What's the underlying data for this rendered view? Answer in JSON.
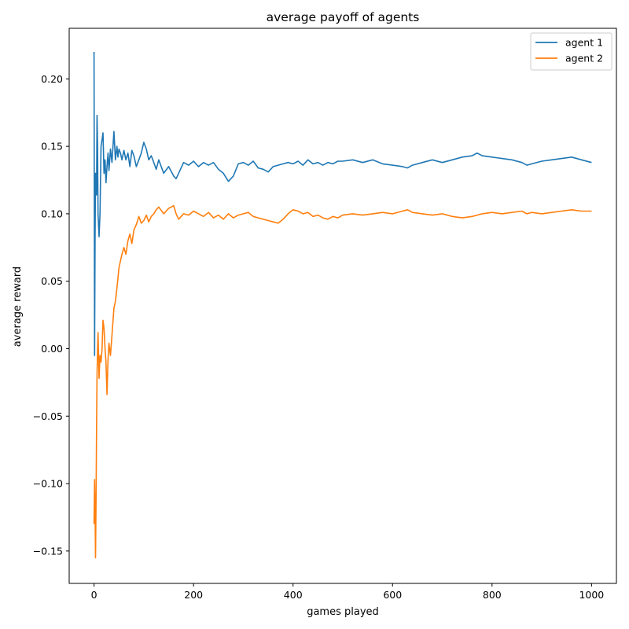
{
  "chart_data": {
    "type": "line",
    "title": "average payoff of agents",
    "xlabel": "games played",
    "ylabel": "average reward",
    "xlim": [
      -50,
      1050
    ],
    "ylim": [
      -0.174,
      0.2375
    ],
    "xticks": [
      0,
      200,
      400,
      600,
      800,
      1000
    ],
    "xtick_labels": [
      "0",
      "200",
      "400",
      "600",
      "800",
      "1000"
    ],
    "yticks": [
      -0.15,
      -0.1,
      -0.05,
      0.0,
      0.05,
      0.1,
      0.15,
      0.2
    ],
    "ytick_labels": [
      "−0.15",
      "−0.10",
      "−0.05",
      "0.00",
      "0.05",
      "0.10",
      "0.15",
      "0.20"
    ],
    "grid": false,
    "legend_position": "top-right",
    "series": [
      {
        "name": "agent 1",
        "color": "#1f77b4",
        "x": [
          0,
          1,
          2,
          3,
          4,
          5,
          6,
          7,
          8,
          10,
          12,
          14,
          16,
          18,
          20,
          22,
          24,
          26,
          28,
          30,
          33,
          36,
          40,
          43,
          46,
          48,
          50,
          53,
          56,
          60,
          64,
          68,
          72,
          76,
          80,
          85,
          90,
          95,
          100,
          105,
          110,
          115,
          120,
          125,
          130,
          140,
          150,
          160,
          165,
          170,
          180,
          190,
          200,
          210,
          220,
          230,
          240,
          250,
          260,
          265,
          270,
          280,
          290,
          300,
          310,
          320,
          330,
          340,
          350,
          360,
          370,
          380,
          390,
          400,
          410,
          420,
          430,
          440,
          450,
          460,
          470,
          480,
          490,
          500,
          520,
          540,
          560,
          580,
          600,
          620,
          630,
          640,
          660,
          680,
          700,
          720,
          740,
          760,
          770,
          780,
          800,
          820,
          840,
          860,
          870,
          880,
          900,
          920,
          940,
          960,
          980,
          1000
        ],
        "values": [
          0.22,
          -0.005,
          0.08,
          0.13,
          0.13,
          0.114,
          0.173,
          0.15,
          0.1,
          0.083,
          0.1,
          0.15,
          0.155,
          0.16,
          0.13,
          0.14,
          0.123,
          0.135,
          0.145,
          0.132,
          0.148,
          0.138,
          0.161,
          0.14,
          0.15,
          0.142,
          0.148,
          0.145,
          0.14,
          0.147,
          0.14,
          0.145,
          0.135,
          0.147,
          0.143,
          0.135,
          0.14,
          0.145,
          0.153,
          0.148,
          0.14,
          0.143,
          0.138,
          0.133,
          0.14,
          0.13,
          0.135,
          0.128,
          0.126,
          0.13,
          0.138,
          0.136,
          0.139,
          0.135,
          0.138,
          0.136,
          0.138,
          0.133,
          0.13,
          0.127,
          0.124,
          0.128,
          0.137,
          0.138,
          0.136,
          0.139,
          0.134,
          0.133,
          0.131,
          0.135,
          0.136,
          0.137,
          0.138,
          0.137,
          0.139,
          0.136,
          0.14,
          0.137,
          0.138,
          0.136,
          0.138,
          0.137,
          0.139,
          0.139,
          0.14,
          0.138,
          0.14,
          0.137,
          0.136,
          0.135,
          0.134,
          0.136,
          0.138,
          0.14,
          0.138,
          0.14,
          0.142,
          0.143,
          0.145,
          0.143,
          0.142,
          0.141,
          0.14,
          0.138,
          0.136,
          0.137,
          0.139,
          0.14,
          0.141,
          0.142,
          0.14,
          0.138
        ]
      },
      {
        "name": "agent 2",
        "color": "#ff7f0e",
        "x": [
          0,
          1,
          2,
          3,
          4,
          5,
          6,
          7,
          8,
          10,
          12,
          14,
          16,
          18,
          20,
          22,
          24,
          26,
          28,
          30,
          33,
          36,
          40,
          43,
          46,
          48,
          50,
          53,
          56,
          60,
          64,
          68,
          72,
          76,
          80,
          85,
          90,
          95,
          100,
          105,
          110,
          115,
          120,
          125,
          130,
          140,
          150,
          160,
          165,
          170,
          180,
          190,
          200,
          210,
          220,
          230,
          240,
          250,
          260,
          265,
          270,
          280,
          290,
          300,
          310,
          320,
          330,
          340,
          350,
          360,
          370,
          380,
          390,
          400,
          410,
          420,
          430,
          440,
          450,
          460,
          470,
          480,
          490,
          500,
          520,
          540,
          560,
          580,
          600,
          620,
          630,
          640,
          660,
          680,
          700,
          720,
          740,
          760,
          770,
          780,
          800,
          820,
          840,
          860,
          870,
          880,
          900,
          920,
          940,
          960,
          980,
          1000
        ],
        "values": [
          -0.13,
          -0.097,
          -0.12,
          -0.155,
          -0.11,
          -0.06,
          -0.02,
          0.0,
          0.012,
          -0.022,
          -0.005,
          -0.01,
          0.0,
          0.021,
          0.015,
          0.0,
          -0.01,
          -0.034,
          -0.008,
          0.004,
          -0.005,
          0.01,
          0.03,
          0.035,
          0.045,
          0.052,
          0.06,
          0.065,
          0.07,
          0.075,
          0.07,
          0.08,
          0.085,
          0.078,
          0.088,
          0.092,
          0.098,
          0.093,
          0.095,
          0.099,
          0.094,
          0.098,
          0.1,
          0.103,
          0.105,
          0.1,
          0.104,
          0.106,
          0.1,
          0.096,
          0.1,
          0.099,
          0.102,
          0.1,
          0.098,
          0.101,
          0.097,
          0.099,
          0.096,
          0.098,
          0.1,
          0.097,
          0.099,
          0.1,
          0.101,
          0.098,
          0.097,
          0.096,
          0.095,
          0.094,
          0.093,
          0.096,
          0.1,
          0.103,
          0.102,
          0.1,
          0.101,
          0.098,
          0.099,
          0.097,
          0.096,
          0.098,
          0.097,
          0.099,
          0.1,
          0.099,
          0.1,
          0.101,
          0.1,
          0.102,
          0.103,
          0.101,
          0.1,
          0.099,
          0.1,
          0.098,
          0.097,
          0.098,
          0.099,
          0.1,
          0.101,
          0.1,
          0.101,
          0.102,
          0.1,
          0.101,
          0.1,
          0.101,
          0.102,
          0.103,
          0.102,
          0.102
        ]
      }
    ]
  }
}
